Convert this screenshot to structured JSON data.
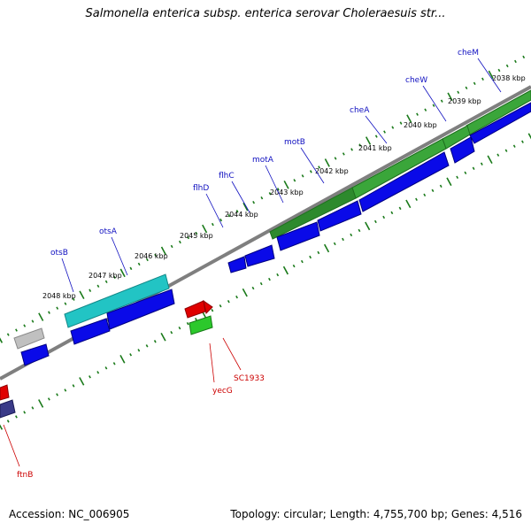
{
  "title": "Salmonella enterica subsp. enterica serovar Choleraesuis str...",
  "accession": "Accession: NC_006905",
  "summary": "Topology: circular; Length: 4,755,700 bp; Genes: 4,516",
  "scale_labels": [
    "2038 kbp",
    "2039 kbp",
    "2040 kbp",
    "2041 kbp",
    "2042 kbp",
    "2043 kbp",
    "2044 kbp",
    "2045 kbp",
    "2046 kbp",
    "2047 kbp",
    "2048 kbp"
  ],
  "gene_labels_blue": [
    "cheM",
    "cheW",
    "cheA",
    "motB",
    "motA",
    "flhC",
    "flhD",
    "otsA",
    "otsB"
  ],
  "gene_labels_red": [
    "SC1933",
    "yecG",
    "ftnB"
  ],
  "colors": {
    "axis": "#7f7f7f",
    "ticks": "#1a7a1a",
    "cds": "#0000e0",
    "green": "#2ca02c",
    "cyan": "#20c8c8",
    "red": "#e00000",
    "gray": "#b0b0b0",
    "navy": "#3a3a88",
    "label_blue": "#1010c0",
    "label_red": "#cc0000"
  }
}
